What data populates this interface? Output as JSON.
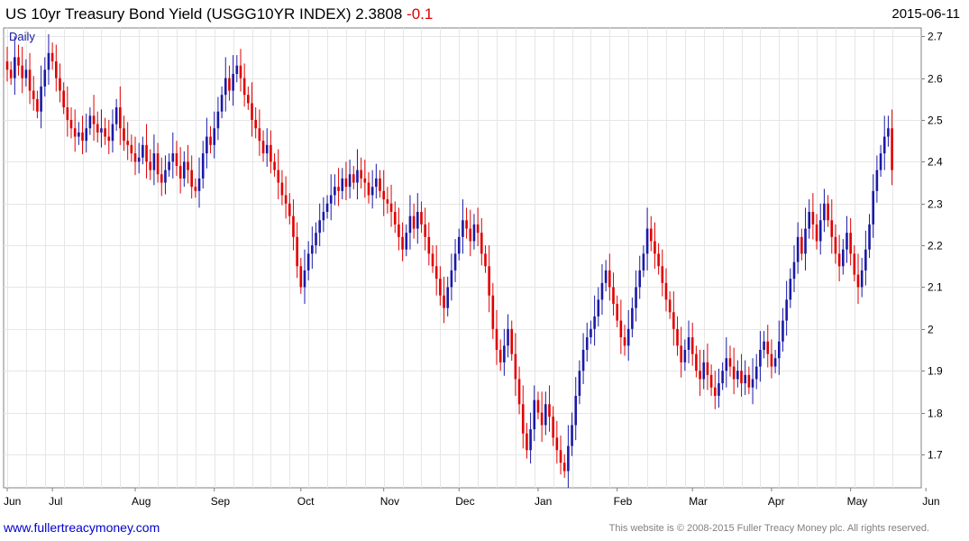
{
  "header": {
    "title_main": "US 10yr Treasury Bond Yield (USGG10YR INDEX) 2.3808",
    "title_change": "-0.1",
    "date": "2015-06-11"
  },
  "footer": {
    "website": "www.fullertreacymoney.com",
    "copyright": "This website is © 2008-2015 Fuller Treacy Money plc. All rights reserved."
  },
  "colors": {
    "up": "#1a1aa6",
    "down": "#e00000",
    "grid": "#e6e6e6",
    "axis": "#808080"
  },
  "chart_data": {
    "type": "candlestick",
    "period_label": "Daily",
    "ylim": [
      1.62,
      2.72
    ],
    "y_ticks": [
      1.7,
      1.8,
      1.9,
      2,
      2.1,
      2.2,
      2.3,
      2.4,
      2.5,
      2.6,
      2.7
    ],
    "y_tick_labels": [
      "1.7",
      "1.8",
      "1.9",
      "2",
      "2.1",
      "2.2",
      "2.3",
      "2.4",
      "2.5",
      "2.6",
      "2.7"
    ],
    "x_labels": [
      "Jun",
      "Jul",
      "Aug",
      "Sep",
      "Oct",
      "Nov",
      "Dec",
      "Jan",
      "Feb",
      "Mar",
      "Apr",
      "May",
      "Jun"
    ],
    "x_label_bar_index": [
      0,
      12,
      34,
      55,
      78,
      100,
      120,
      141,
      162,
      182,
      203,
      224,
      244
    ],
    "grid": true,
    "closes": [
      2.62,
      2.6,
      2.65,
      2.63,
      2.6,
      2.62,
      2.57,
      2.55,
      2.52,
      2.58,
      2.62,
      2.66,
      2.64,
      2.6,
      2.57,
      2.53,
      2.5,
      2.48,
      2.46,
      2.47,
      2.45,
      2.48,
      2.51,
      2.49,
      2.47,
      2.48,
      2.46,
      2.45,
      2.49,
      2.53,
      2.48,
      2.45,
      2.44,
      2.42,
      2.4,
      2.41,
      2.44,
      2.4,
      2.38,
      2.42,
      2.37,
      2.35,
      2.38,
      2.4,
      2.42,
      2.39,
      2.36,
      2.4,
      2.38,
      2.34,
      2.33,
      2.36,
      2.42,
      2.46,
      2.44,
      2.48,
      2.52,
      2.56,
      2.6,
      2.57,
      2.61,
      2.63,
      2.6,
      2.56,
      2.54,
      2.5,
      2.48,
      2.45,
      2.42,
      2.44,
      2.4,
      2.38,
      2.35,
      2.32,
      2.3,
      2.27,
      2.22,
      2.15,
      2.1,
      2.14,
      2.18,
      2.2,
      2.23,
      2.26,
      2.28,
      2.3,
      2.32,
      2.34,
      2.33,
      2.36,
      2.34,
      2.37,
      2.35,
      2.38,
      2.36,
      2.35,
      2.32,
      2.34,
      2.36,
      2.33,
      2.31,
      2.3,
      2.28,
      2.25,
      2.22,
      2.19,
      2.23,
      2.27,
      2.24,
      2.28,
      2.25,
      2.22,
      2.18,
      2.15,
      2.12,
      2.08,
      2.05,
      2.1,
      2.14,
      2.18,
      2.22,
      2.26,
      2.24,
      2.21,
      2.25,
      2.23,
      2.18,
      2.15,
      2.08,
      2.0,
      1.95,
      1.92,
      1.96,
      2.0,
      1.94,
      1.88,
      1.82,
      1.75,
      1.71,
      1.76,
      1.83,
      1.8,
      1.77,
      1.82,
      1.79,
      1.74,
      1.71,
      1.68,
      1.66,
      1.72,
      1.77,
      1.84,
      1.9,
      1.95,
      1.98,
      2.0,
      2.03,
      2.07,
      2.11,
      2.14,
      2.1,
      2.06,
      2.02,
      1.98,
      1.96,
      2.0,
      2.05,
      2.1,
      2.14,
      2.18,
      2.24,
      2.21,
      2.18,
      2.15,
      2.11,
      2.07,
      2.04,
      2.0,
      1.96,
      1.92,
      1.95,
      1.98,
      1.94,
      1.9,
      1.88,
      1.92,
      1.89,
      1.86,
      1.84,
      1.87,
      1.9,
      1.93,
      1.91,
      1.88,
      1.9,
      1.87,
      1.89,
      1.86,
      1.88,
      1.91,
      1.95,
      1.97,
      1.94,
      1.91,
      1.93,
      1.97,
      2.02,
      2.07,
      2.12,
      2.16,
      2.22,
      2.18,
      2.24,
      2.28,
      2.25,
      2.21,
      2.26,
      2.3,
      2.26,
      2.22,
      2.18,
      2.15,
      2.19,
      2.23,
      2.18,
      2.13,
      2.1,
      2.14,
      2.19,
      2.25,
      2.33,
      2.38,
      2.42,
      2.46,
      2.48,
      2.38
    ]
  }
}
